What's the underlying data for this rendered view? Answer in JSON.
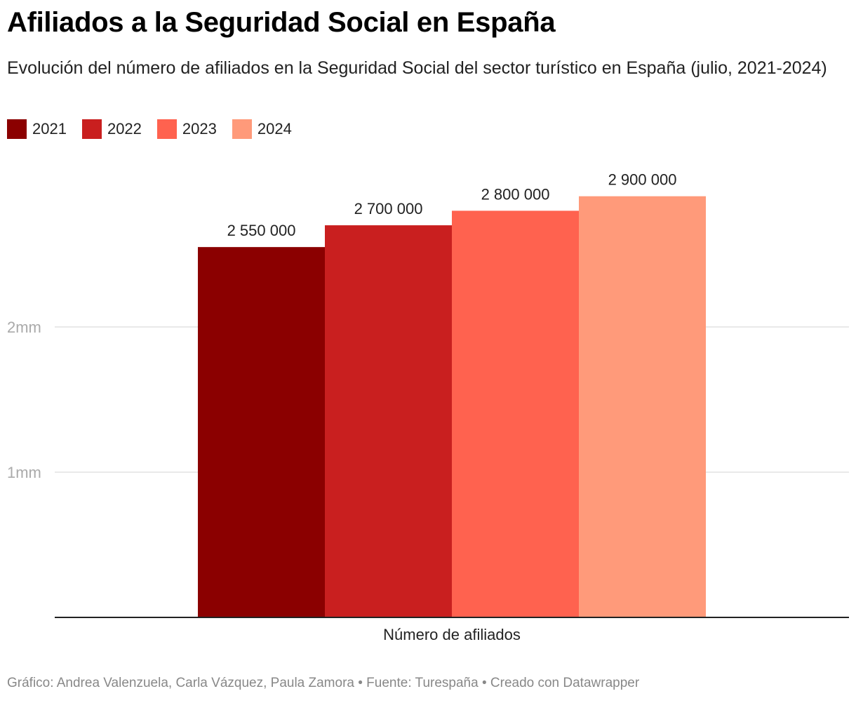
{
  "title": "Afiliados a la Seguridad Social en España",
  "subtitle": "Evolución del número de afiliados en la Seguridad Social del sector turístico en España (julio, 2021-2024)",
  "footer": "Gráfico: Andrea Valenzuela, Carla Vázquez, Paula Zamora • Fuente: Turespaña • Creado con Datawrapper",
  "chart_data": {
    "type": "bar",
    "categories": [
      "Número de afiliados"
    ],
    "series": [
      {
        "name": "2021",
        "values": [
          2550000
        ],
        "color": "#8b0000",
        "label": "2 550 000"
      },
      {
        "name": "2022",
        "values": [
          2700000
        ],
        "color": "#c91f1f",
        "label": "2 700 000"
      },
      {
        "name": "2023",
        "values": [
          2800000
        ],
        "color": "#ff624f",
        "label": "2 800 000"
      },
      {
        "name": "2024",
        "values": [
          2900000
        ],
        "color": "#ff9a7a",
        "label": "2 900 000"
      }
    ],
    "yticks": [
      {
        "value": 1000000,
        "label": "1mm"
      },
      {
        "value": 2000000,
        "label": "2mm"
      }
    ],
    "ylim": [
      0,
      3000000
    ],
    "grid": true,
    "legend": "top-left"
  }
}
